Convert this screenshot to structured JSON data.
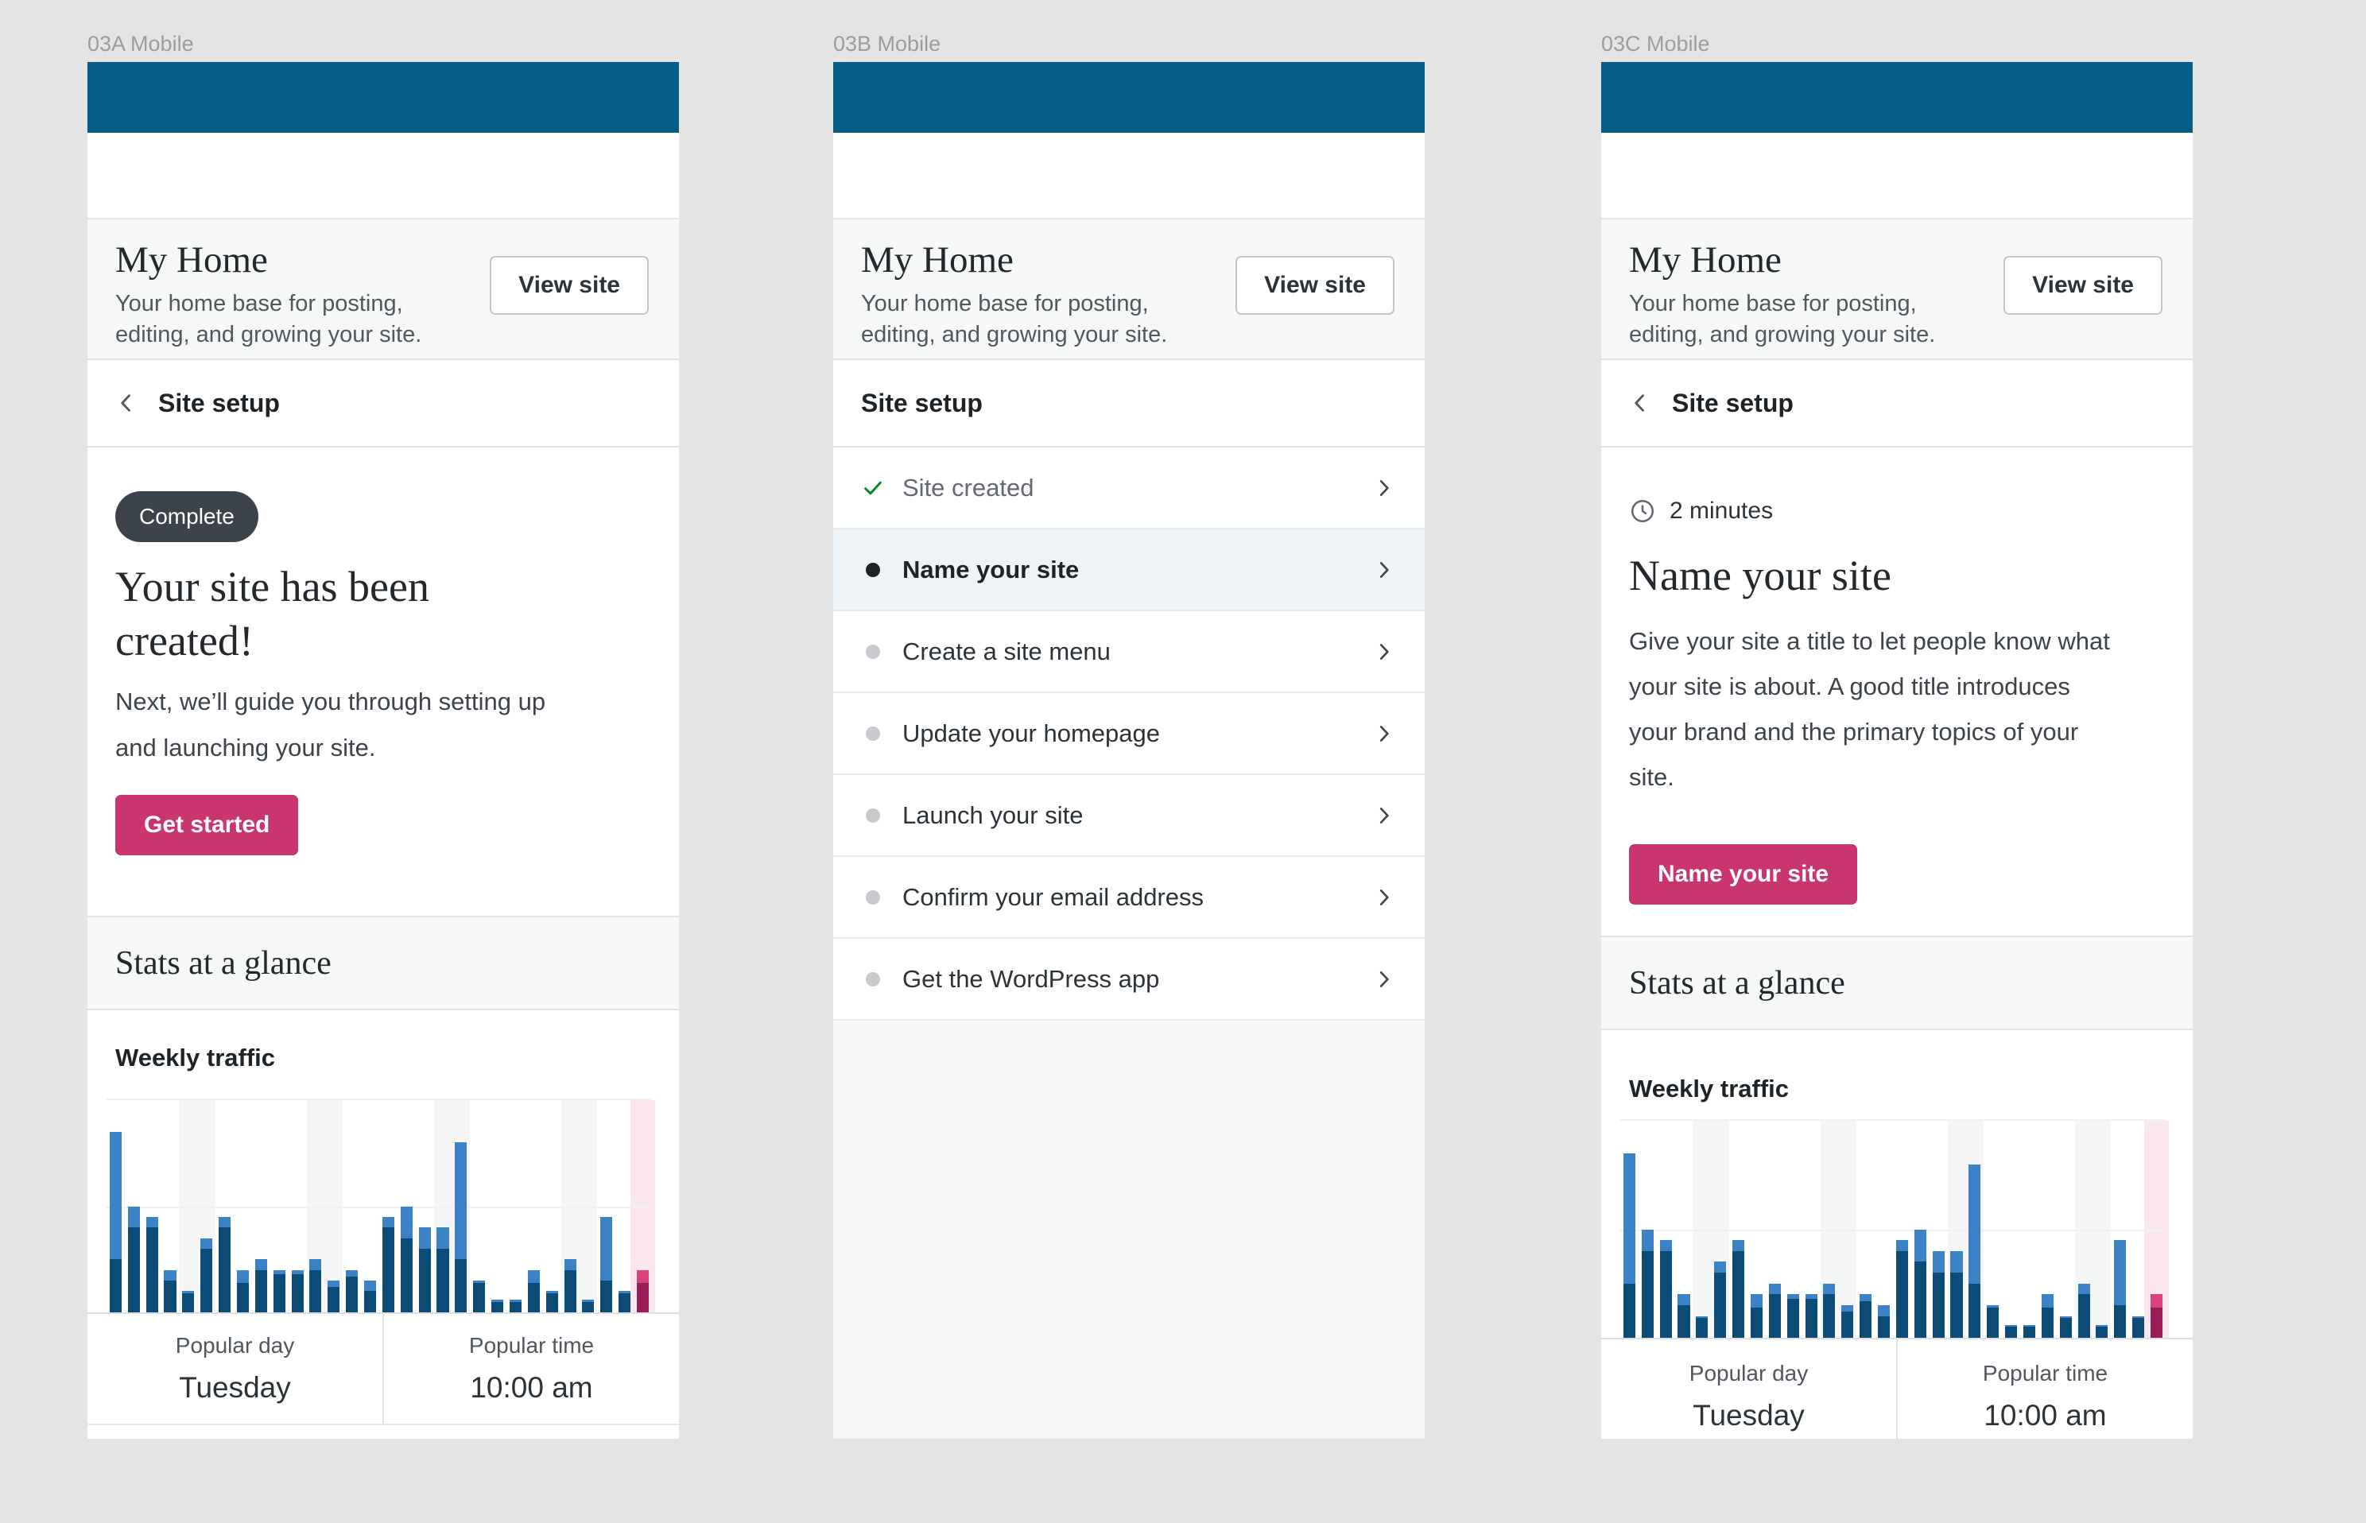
{
  "colors": {
    "admin_bar": "#045e87",
    "accent_pink": "#c9356e",
    "header_gray": "#f6f7f7",
    "active_row_blue": "#eef3f8",
    "done_check_green": "#008a20"
  },
  "frames": [
    {
      "label": "03A Mobile",
      "my_home": {
        "title": "My Home",
        "subtitle": "Your home base for posting, editing, and growing your site.",
        "view_site": "View site"
      },
      "site_setup": {
        "title": "Site setup"
      },
      "main": {
        "badge": "Complete",
        "heading": "Your site has been created!",
        "body": "Next, we’ll guide you through setting up and launching your site.",
        "cta": "Get started"
      },
      "stats": {
        "section_title": "Stats at a glance",
        "card_title": "Weekly traffic",
        "popular_day_label": "Popular day",
        "popular_day_value": "Tuesday",
        "popular_time_label": "Popular time",
        "popular_time_value": "10:00 am"
      }
    },
    {
      "label": "03B Mobile",
      "my_home": {
        "title": "My Home",
        "subtitle": "Your home base for posting, editing, and growing your site.",
        "view_site": "View site"
      },
      "site_setup": {
        "title": "Site setup"
      },
      "checklist": [
        {
          "label": "Site created",
          "state": "done"
        },
        {
          "label": "Name your site",
          "state": "active"
        },
        {
          "label": "Create a site menu",
          "state": "pending"
        },
        {
          "label": "Update your homepage",
          "state": "pending"
        },
        {
          "label": "Launch your site",
          "state": "pending"
        },
        {
          "label": "Confirm your email address",
          "state": "pending"
        },
        {
          "label": "Get the WordPress app",
          "state": "pending"
        }
      ]
    },
    {
      "label": "03C Mobile",
      "my_home": {
        "title": "My Home",
        "subtitle": "Your home base for posting, editing, and growing your site.",
        "view_site": "View site"
      },
      "site_setup": {
        "title": "Site setup"
      },
      "task": {
        "duration": "2 minutes",
        "heading": "Name your site",
        "body": "Give your site a title to let people know what your site is about. A good title introduces your brand and the primary topics of your site.",
        "cta": "Name your site"
      },
      "stats": {
        "section_title": "Stats at a glance",
        "card_title": "Weekly traffic",
        "popular_day_label": "Popular day",
        "popular_day_value": "Tuesday",
        "popular_time_label": "Popular time",
        "popular_time_value": "10:00 am"
      }
    }
  ],
  "chart_data": {
    "type": "bar",
    "title": "Weekly traffic",
    "xlabel": "",
    "ylabel": "",
    "legend": "none shown",
    "grid": "horizontal gridlines at top and 50%; no tick labels",
    "notes": "30 daily stacked bars (light = total views, dark = visitors); weekend columns shaded; latest day highlighted in pink",
    "colors": {
      "blue": "#3b82c6",
      "blue_dark": "#0d4b77",
      "pink": "#d9457b",
      "pink_dark": "#9a1d55",
      "weekend_band": "#f4f6f6",
      "highlight_band": "#fbe5ee"
    },
    "bars": [
      {
        "t": 85,
        "d": 25
      },
      {
        "t": 50,
        "d": 40
      },
      {
        "t": 45,
        "d": 40
      },
      {
        "t": 20,
        "d": 15
      },
      {
        "t": 10,
        "d": 9
      },
      {
        "t": 35,
        "d": 30
      },
      {
        "t": 45,
        "d": 40
      },
      {
        "t": 20,
        "d": 14
      },
      {
        "t": 25,
        "d": 20
      },
      {
        "t": 20,
        "d": 18
      },
      {
        "t": 20,
        "d": 18
      },
      {
        "t": 25,
        "d": 20
      },
      {
        "t": 15,
        "d": 12
      },
      {
        "t": 20,
        "d": 17
      },
      {
        "t": 15,
        "d": 10
      },
      {
        "t": 45,
        "d": 40
      },
      {
        "t": 50,
        "d": 35
      },
      {
        "t": 40,
        "d": 30
      },
      {
        "t": 40,
        "d": 30
      },
      {
        "t": 80,
        "d": 25
      },
      {
        "t": 15,
        "d": 14
      },
      {
        "t": 6,
        "d": 5
      },
      {
        "t": 6,
        "d": 5
      },
      {
        "t": 20,
        "d": 14
      },
      {
        "t": 10,
        "d": 9
      },
      {
        "t": 25,
        "d": 20
      },
      {
        "t": 6,
        "d": 5
      },
      {
        "t": 45,
        "d": 15
      },
      {
        "t": 10,
        "d": 9
      },
      {
        "t": 20,
        "d": 14,
        "highlight": true
      }
    ],
    "weekend_bands": [
      4,
      11,
      18,
      25
    ],
    "highlight_index": 29
  }
}
